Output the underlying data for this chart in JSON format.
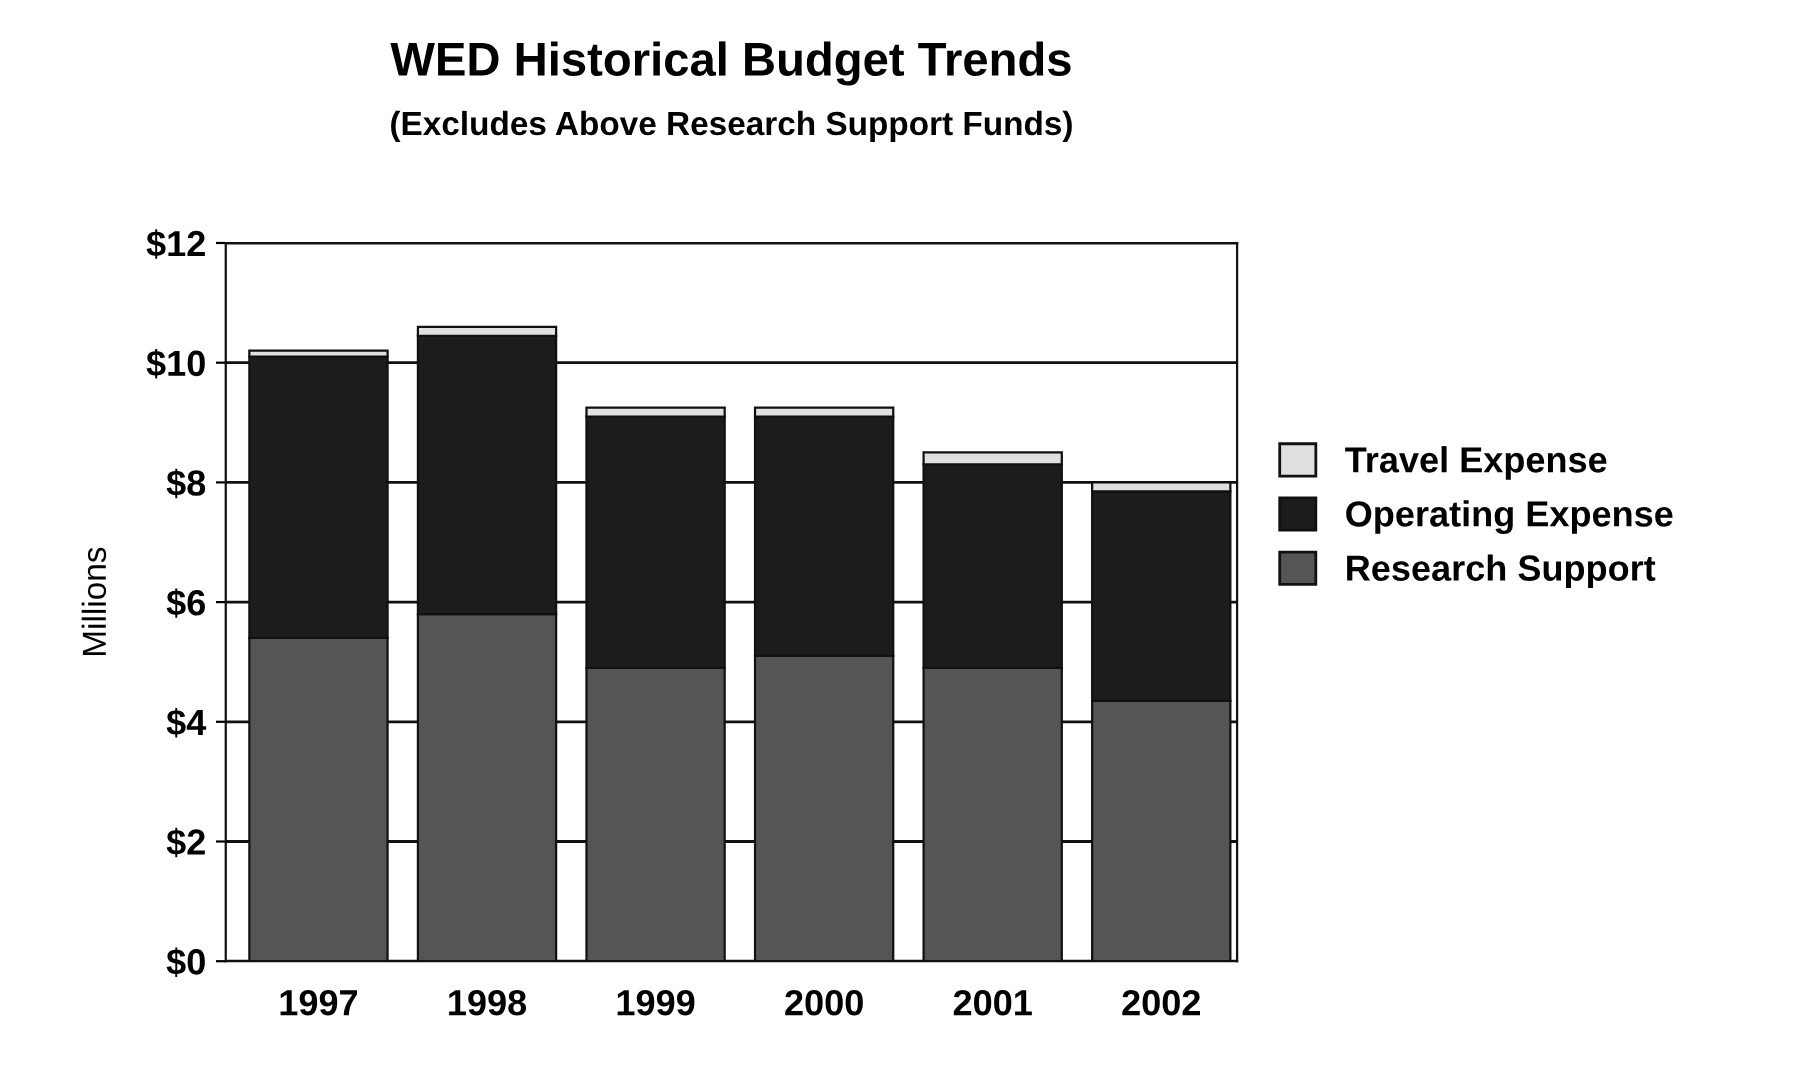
{
  "chart_data": {
    "type": "bar",
    "title": "WED Historical Budget Trends",
    "subtitle": "(Excludes Above Research Support Funds)",
    "ylabel": "Millions",
    "categories": [
      "1997",
      "1998",
      "1999",
      "2000",
      "2001",
      "2002"
    ],
    "stacked": true,
    "series": [
      {
        "name": "Research Support",
        "color": "#555555",
        "values": [
          5.4,
          5.8,
          4.9,
          5.1,
          4.9,
          4.35
        ]
      },
      {
        "name": "Operating Expense",
        "color": "#1c1c1c",
        "values": [
          4.7,
          4.65,
          4.2,
          4.0,
          3.4,
          3.5
        ]
      },
      {
        "name": "Travel Expense",
        "color": "#e0e0e0",
        "values": [
          0.1,
          0.15,
          0.15,
          0.15,
          0.2,
          0.15
        ]
      }
    ],
    "ylim": [
      0,
      12
    ],
    "yticks": [
      {
        "value": 0,
        "label": "$0"
      },
      {
        "value": 2,
        "label": "$2"
      },
      {
        "value": 4,
        "label": "$4"
      },
      {
        "value": 6,
        "label": "$6"
      },
      {
        "value": 8,
        "label": "$8"
      },
      {
        "value": 10,
        "label": "$10"
      },
      {
        "value": 12,
        "label": "$12"
      }
    ],
    "grid": "y",
    "legend": "right"
  }
}
